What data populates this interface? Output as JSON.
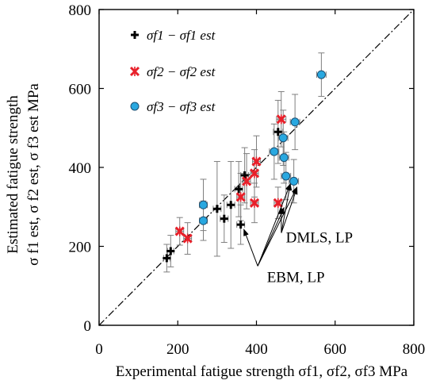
{
  "chart_data": {
    "type": "scatter",
    "xlabel": "Experimental fatigue strength σf1, σf2, σf3 MPa",
    "ylabel_line1": "Estimated fatigue strength",
    "ylabel_line2": "σ f1 est, σ f2 est, σ f3 est MPa",
    "xlim": [
      0,
      800
    ],
    "ylim": [
      0,
      800
    ],
    "xticks": [
      0,
      200,
      400,
      600,
      800
    ],
    "yticks": [
      0,
      200,
      400,
      600,
      800
    ],
    "grid": false,
    "legend_position": "top-left",
    "reference_line": {
      "style": "dash-dot",
      "from": [
        0,
        0
      ],
      "to": [
        800,
        800
      ]
    },
    "series": [
      {
        "name": "σf1 − σf1 est",
        "marker": "plus",
        "color": "#000000",
        "points": [
          {
            "x": 172,
            "y": 170,
            "yerr": 35,
            "xerr": 8
          },
          {
            "x": 182,
            "y": 188,
            "yerr": 40,
            "xerr": 8
          },
          {
            "x": 300,
            "y": 295,
            "yerr": 120,
            "xerr": 10
          },
          {
            "x": 335,
            "y": 305,
            "yerr": 110,
            "xerr": 10
          },
          {
            "x": 318,
            "y": 270,
            "yerr": 60,
            "xerr": 10
          },
          {
            "x": 360,
            "y": 255,
            "yerr": 50,
            "xerr": 10
          },
          {
            "x": 355,
            "y": 345,
            "yerr": 70,
            "xerr": 10
          },
          {
            "x": 370,
            "y": 380,
            "yerr": 70,
            "xerr": 10
          },
          {
            "x": 455,
            "y": 490,
            "yerr": 80,
            "xerr": 12
          }
        ]
      },
      {
        "name": "σf2 − σf2 est",
        "marker": "x",
        "color": "#e8202a",
        "points": [
          {
            "x": 205,
            "y": 238,
            "yerr": 35,
            "xerr": 10
          },
          {
            "x": 225,
            "y": 220,
            "yerr": 40,
            "xerr": 10
          },
          {
            "x": 360,
            "y": 325,
            "yerr": 60,
            "xerr": 10
          },
          {
            "x": 375,
            "y": 365,
            "yerr": 70,
            "xerr": 10
          },
          {
            "x": 395,
            "y": 385,
            "yerr": 60,
            "xerr": 10
          },
          {
            "x": 395,
            "y": 310,
            "yerr": 50,
            "xerr": 10
          },
          {
            "x": 400,
            "y": 415,
            "yerr": 65,
            "xerr": 10
          },
          {
            "x": 455,
            "y": 310,
            "yerr": 40,
            "xerr": 10
          },
          {
            "x": 463,
            "y": 522,
            "yerr": 70,
            "xerr": 12
          }
        ]
      },
      {
        "name": "σf3 − σf3 est",
        "marker": "circle",
        "color": "#29a8e0",
        "points": [
          {
            "x": 265,
            "y": 305,
            "yerr": 65,
            "xerr": 10
          },
          {
            "x": 265,
            "y": 265,
            "yerr": 50,
            "xerr": 10
          },
          {
            "x": 445,
            "y": 440,
            "yerr": 70,
            "xerr": 12
          },
          {
            "x": 468,
            "y": 475,
            "yerr": 70,
            "xerr": 12
          },
          {
            "x": 470,
            "y": 425,
            "yerr": 65,
            "xerr": 12
          },
          {
            "x": 475,
            "y": 378,
            "yerr": 60,
            "xerr": 12
          },
          {
            "x": 495,
            "y": 365,
            "yerr": 55,
            "xerr": 12
          },
          {
            "x": 498,
            "y": 515,
            "yerr": 70,
            "xerr": 12
          },
          {
            "x": 565,
            "y": 635,
            "yerr": 55,
            "xerr": 12
          }
        ]
      }
    ],
    "annotations": [
      {
        "text": "DMLS, LP",
        "x": 560,
        "y": 210,
        "targets": [
          [
            455,
            310
          ],
          [
            478,
            370
          ],
          [
            495,
            360
          ]
        ]
      },
      {
        "text": "EBM, LP",
        "x": 500,
        "y": 110,
        "targets": [
          [
            360,
            255
          ],
          [
            462,
            310
          ],
          [
            478,
            370
          ],
          [
            495,
            362
          ]
        ]
      }
    ]
  }
}
